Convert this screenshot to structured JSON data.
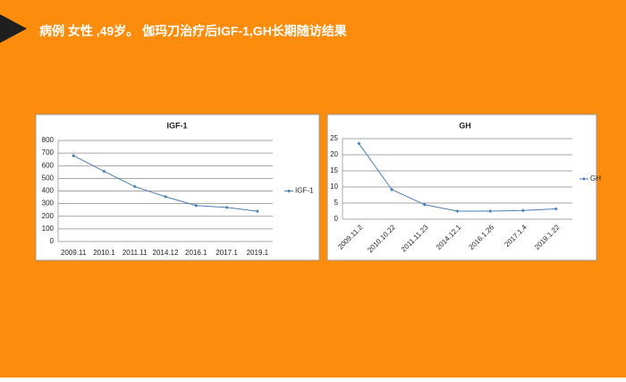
{
  "slide_title": "病例  女性 ,49岁。 伽玛刀治疗后IGF-1,GH长期随访结果",
  "chart_data": [
    {
      "type": "line",
      "title": "IGF-1",
      "categories": [
        "2009.11",
        "2010.1",
        "2011.11",
        "2014.12",
        "2016.1",
        "2017.1",
        "2019.1"
      ],
      "series": [
        {
          "name": "IGF-1",
          "color": "#4a7ebb",
          "values": [
            680,
            555,
            435,
            355,
            285,
            270,
            240
          ]
        }
      ],
      "ylim": [
        0,
        800
      ],
      "yticks": [
        0,
        100,
        200,
        300,
        400,
        500,
        600,
        700,
        800
      ],
      "grid": true,
      "legend": "right"
    },
    {
      "type": "line",
      "title": "GH",
      "categories": [
        "2009.11.2",
        "2010.10.22",
        "2011.11.23",
        "2014.12.1",
        "2016.1.26",
        "2017.1.4",
        "2019.1.22"
      ],
      "series": [
        {
          "name": "GH",
          "color": "#4a7ebb",
          "values": [
            23.5,
            9.2,
            4.5,
            2.5,
            2.5,
            2.7,
            3.2
          ]
        }
      ],
      "ylim": [
        0,
        25
      ],
      "yticks": [
        0,
        5,
        10,
        15,
        20,
        25
      ],
      "grid": true,
      "legend": "right"
    }
  ]
}
